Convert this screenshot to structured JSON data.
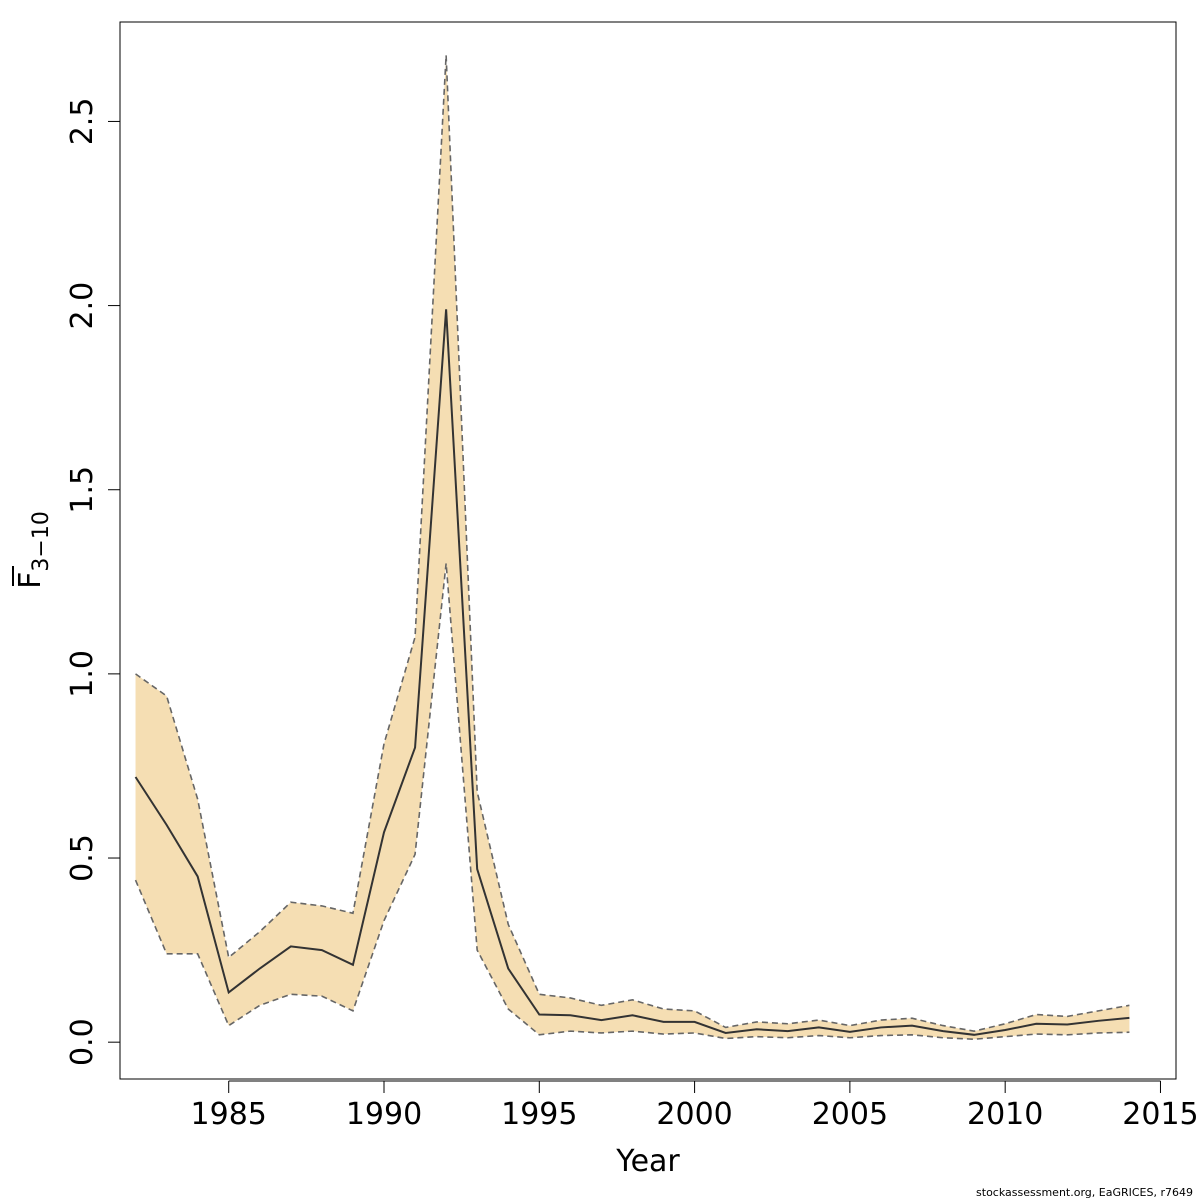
{
  "chart_data": {
    "type": "line",
    "title": "",
    "xlabel": "Year",
    "ylabel": "F",
    "ylabel_subscript": "3−10",
    "credit": "stockassessment.org, EaGRICES, r7649",
    "xlim": [
      1981.5,
      2015.5
    ],
    "ylim": [
      -0.1,
      2.77
    ],
    "xticks": [
      1985,
      1990,
      1995,
      2000,
      2005,
      2010,
      2015
    ],
    "yticks": [
      0.0,
      0.5,
      1.0,
      1.5,
      2.0,
      2.5
    ],
    "ytick_labels": [
      "0.0",
      "0.5",
      "1.0",
      "1.5",
      "2.0",
      "2.5"
    ],
    "grid": false,
    "colors": {
      "band": "#F5DEB3",
      "line": "#333333",
      "bound": "#666666"
    },
    "x": [
      1982,
      1983,
      1984,
      1985,
      1986,
      1987,
      1988,
      1989,
      1990,
      1991,
      1992,
      1993,
      1994,
      1995,
      1996,
      1997,
      1998,
      1999,
      2000,
      2001,
      2002,
      2003,
      2004,
      2005,
      2006,
      2007,
      2008,
      2009,
      2010,
      2011,
      2012,
      2013,
      2014
    ],
    "series": [
      {
        "values": [
          0.72,
          0.59,
          0.45,
          0.135,
          0.2,
          0.26,
          0.25,
          0.21,
          0.57,
          0.8,
          1.99,
          0.47,
          0.2,
          0.075,
          0.073,
          0.06,
          0.073,
          0.055,
          0.055,
          0.025,
          0.035,
          0.03,
          0.04,
          0.028,
          0.04,
          0.045,
          0.03,
          0.02,
          0.033,
          0.05,
          0.048,
          0.058,
          0.066
        ]
      },
      {
        "values": [
          1.0,
          0.94,
          0.66,
          0.23,
          0.3,
          0.38,
          0.37,
          0.35,
          0.81,
          1.1,
          2.68,
          0.68,
          0.32,
          0.13,
          0.12,
          0.1,
          0.115,
          0.09,
          0.085,
          0.04,
          0.055,
          0.05,
          0.06,
          0.045,
          0.06,
          0.065,
          0.045,
          0.03,
          0.05,
          0.075,
          0.07,
          0.085,
          0.1
        ]
      },
      {
        "values": [
          0.44,
          0.24,
          0.24,
          0.045,
          0.1,
          0.13,
          0.125,
          0.085,
          0.33,
          0.51,
          1.3,
          0.25,
          0.09,
          0.02,
          0.03,
          0.025,
          0.03,
          0.022,
          0.025,
          0.01,
          0.015,
          0.012,
          0.018,
          0.012,
          0.018,
          0.02,
          0.012,
          0.008,
          0.015,
          0.022,
          0.02,
          0.025,
          0.027
        ]
      }
    ]
  }
}
